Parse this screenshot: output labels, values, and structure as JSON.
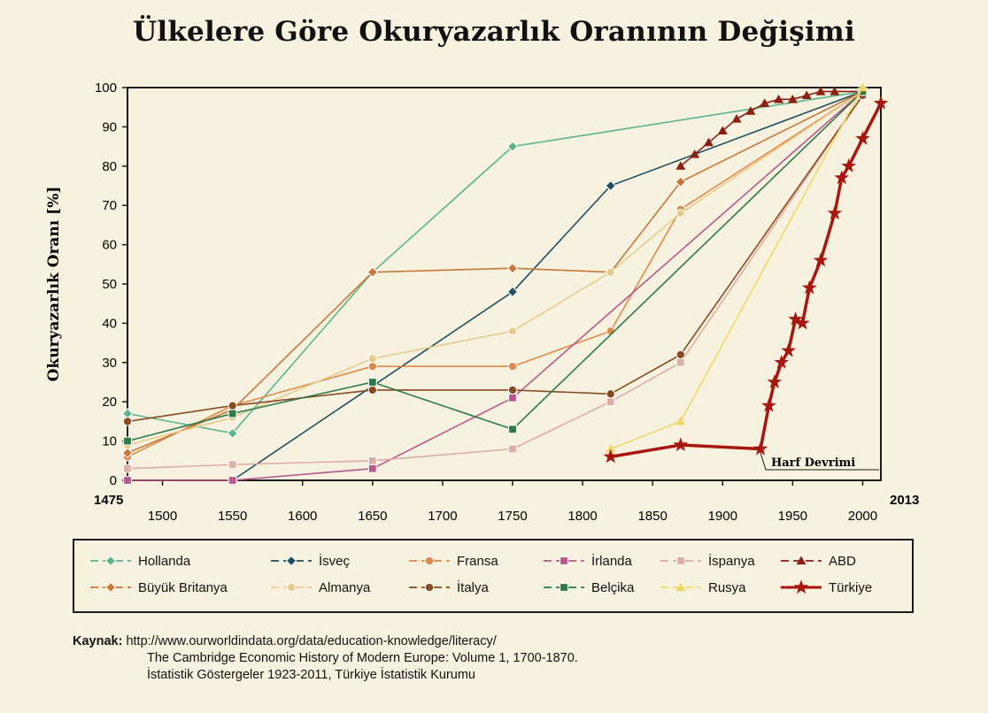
{
  "title": "Ülkelere Göre Okuryazarlık Oranının Değişimi",
  "chart_data": {
    "type": "line",
    "title": "Ülkelere Göre Okuryazarlık Oranının Değişimi",
    "xlabel": "",
    "ylabel": "Okuryazarlık Oranı [%]",
    "xlim": [
      1475,
      2013
    ],
    "ylim": [
      0,
      100
    ],
    "x_ticks": [
      1500,
      1550,
      1600,
      1650,
      1700,
      1750,
      1800,
      1850,
      1900,
      1950,
      2000
    ],
    "x_edge_labels": [
      "1475",
      "2013"
    ],
    "y_ticks": [
      0,
      10,
      20,
      30,
      40,
      50,
      60,
      70,
      80,
      90,
      100
    ],
    "grid": false,
    "legend_position": "below",
    "annotation": "Harf Devrimi",
    "series": [
      {
        "name": "Hollanda",
        "color": "#5bb58d",
        "marker": "diamond",
        "points": [
          [
            1475,
            17
          ],
          [
            1550,
            12
          ],
          [
            1650,
            53
          ],
          [
            1750,
            85
          ],
          [
            2000,
            99
          ]
        ]
      },
      {
        "name": "İsveç",
        "color": "#1e4f63",
        "marker": "diamond",
        "points": [
          [
            1550,
            0
          ],
          [
            1750,
            48
          ],
          [
            1820,
            75
          ],
          [
            2000,
            99
          ]
        ]
      },
      {
        "name": "Fransa",
        "color": "#e08a4a",
        "marker": "circle",
        "points": [
          [
            1475,
            6
          ],
          [
            1550,
            19
          ],
          [
            1650,
            29
          ],
          [
            1750,
            29
          ],
          [
            1820,
            38
          ],
          [
            1870,
            69
          ],
          [
            2000,
            99
          ]
        ]
      },
      {
        "name": "İrlanda",
        "color": "#b8578a",
        "marker": "square",
        "points": [
          [
            1475,
            0
          ],
          [
            1550,
            0
          ],
          [
            1650,
            3
          ],
          [
            1750,
            21
          ],
          [
            2000,
            99
          ]
        ]
      },
      {
        "name": "İspanya",
        "color": "#ddaea4",
        "marker": "square",
        "points": [
          [
            1475,
            3
          ],
          [
            1550,
            4
          ],
          [
            1650,
            5
          ],
          [
            1750,
            8
          ],
          [
            1820,
            20
          ],
          [
            1870,
            30
          ],
          [
            2000,
            98
          ]
        ]
      },
      {
        "name": "ABD",
        "color": "#8b1f14",
        "marker": "triangle",
        "points": [
          [
            1870,
            80
          ],
          [
            1880,
            83
          ],
          [
            1890,
            86
          ],
          [
            1900,
            89
          ],
          [
            1910,
            92
          ],
          [
            1920,
            94
          ],
          [
            1930,
            96
          ],
          [
            1940,
            97
          ],
          [
            1950,
            97
          ],
          [
            1960,
            98
          ],
          [
            1970,
            99
          ],
          [
            1980,
            99
          ],
          [
            2000,
            99
          ]
        ]
      },
      {
        "name": "Büyük Britanya",
        "color": "#c8773a",
        "marker": "diamond",
        "points": [
          [
            1475,
            7
          ],
          [
            1550,
            18
          ],
          [
            1650,
            53
          ],
          [
            1750,
            54
          ],
          [
            1820,
            53
          ],
          [
            1870,
            76
          ],
          [
            2000,
            99
          ]
        ]
      },
      {
        "name": "Almanya",
        "color": "#e6cb8c",
        "marker": "circle",
        "points": [
          [
            1475,
            9
          ],
          [
            1550,
            16
          ],
          [
            1650,
            31
          ],
          [
            1750,
            38
          ],
          [
            1820,
            53
          ],
          [
            1870,
            68
          ],
          [
            2000,
            99
          ]
        ]
      },
      {
        "name": "İtalya",
        "color": "#8a4a20",
        "marker": "circle",
        "points": [
          [
            1475,
            15
          ],
          [
            1550,
            19
          ],
          [
            1650,
            23
          ],
          [
            1750,
            23
          ],
          [
            1820,
            22
          ],
          [
            1870,
            32
          ],
          [
            2000,
            98
          ]
        ]
      },
      {
        "name": "Belçika",
        "color": "#2e7a4a",
        "marker": "square",
        "points": [
          [
            1475,
            10
          ],
          [
            1550,
            17
          ],
          [
            1650,
            25
          ],
          [
            1750,
            13
          ],
          [
            2000,
            99
          ]
        ]
      },
      {
        "name": "Rusya",
        "color": "#efd86a",
        "marker": "triangle",
        "points": [
          [
            1820,
            8
          ],
          [
            1870,
            15
          ],
          [
            2000,
            100
          ]
        ]
      },
      {
        "name": "Türkiye",
        "color": "#a8170f",
        "marker": "star",
        "points": [
          [
            1820,
            6
          ],
          [
            1870,
            9
          ],
          [
            1927,
            8
          ],
          [
            1933,
            19
          ],
          [
            1937,
            25
          ],
          [
            1942,
            30
          ],
          [
            1947,
            33
          ],
          [
            1952,
            41
          ],
          [
            1957,
            40
          ],
          [
            1962,
            49
          ],
          [
            1970,
            56
          ],
          [
            1980,
            68
          ],
          [
            1985,
            77
          ],
          [
            1990,
            80
          ],
          [
            2000,
            87
          ],
          [
            2013,
            96
          ]
        ]
      }
    ]
  },
  "source": {
    "lead": "Kaynak:",
    "line1": "http://www.ourworldindata.org/data/education-knowledge/literacy/",
    "line2": "The Cambridge Economic History of Modern Europe: Volume 1, 1700-1870.",
    "line3": "İstatistik Göstergeler 1923-2011, Türkiye İstatistik Kurumu"
  }
}
